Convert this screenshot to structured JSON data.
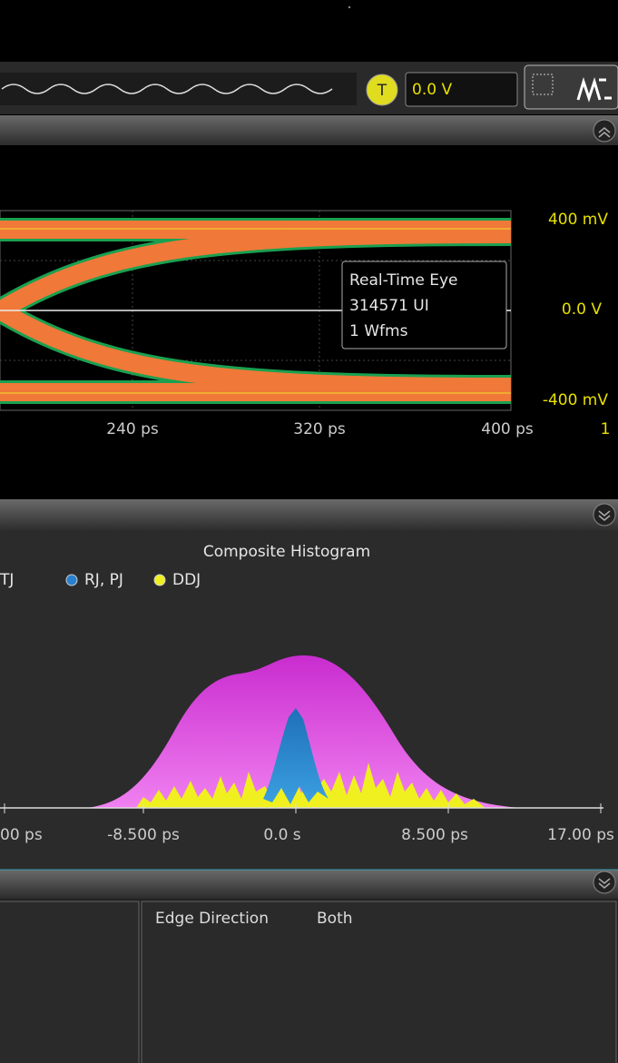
{
  "toolbar": {
    "trigger_icon": "T",
    "trigger_level": "0.0 V"
  },
  "eye": {
    "y_labels": [
      "400 mV",
      "0.0 V",
      "-400 mV"
    ],
    "x_labels": [
      "240 ps",
      "320 ps",
      "400 ps"
    ],
    "channel": "1",
    "tooltip": [
      "Real-Time Eye",
      "314571 UI",
      "1 Wfms"
    ]
  },
  "histogram": {
    "title": "Composite Histogram",
    "legend": [
      "TJ",
      "RJ, PJ",
      "DDJ"
    ],
    "x_labels": [
      "00 ps",
      "-8.500 ps",
      "0.0 s",
      "8.500 ps",
      "17.00 ps"
    ]
  },
  "settings": {
    "label": "Edge Direction",
    "value": "Both"
  }
}
